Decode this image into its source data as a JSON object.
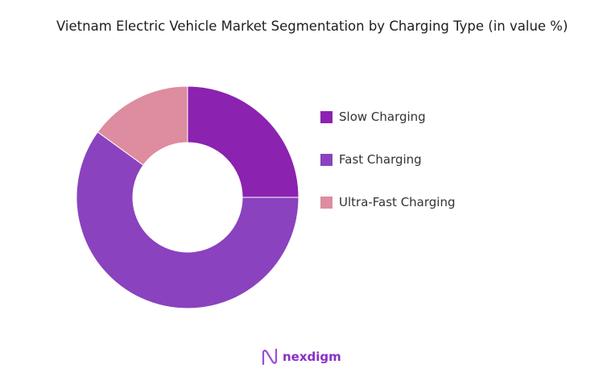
{
  "chart_data": {
    "type": "pie",
    "title": "Vietnam Electric Vehicle Market Segmentation by Charging Type (in value %)",
    "categories": [
      "Slow Charging",
      "Fast Charging",
      "Ultra-Fast Charging"
    ],
    "values": [
      25,
      60,
      15
    ],
    "colors": [
      "#8b22b0",
      "#8a42be",
      "#de8ca0"
    ],
    "donut": true,
    "legend_position": "right"
  },
  "logo": {
    "text": "nexdigm"
  }
}
